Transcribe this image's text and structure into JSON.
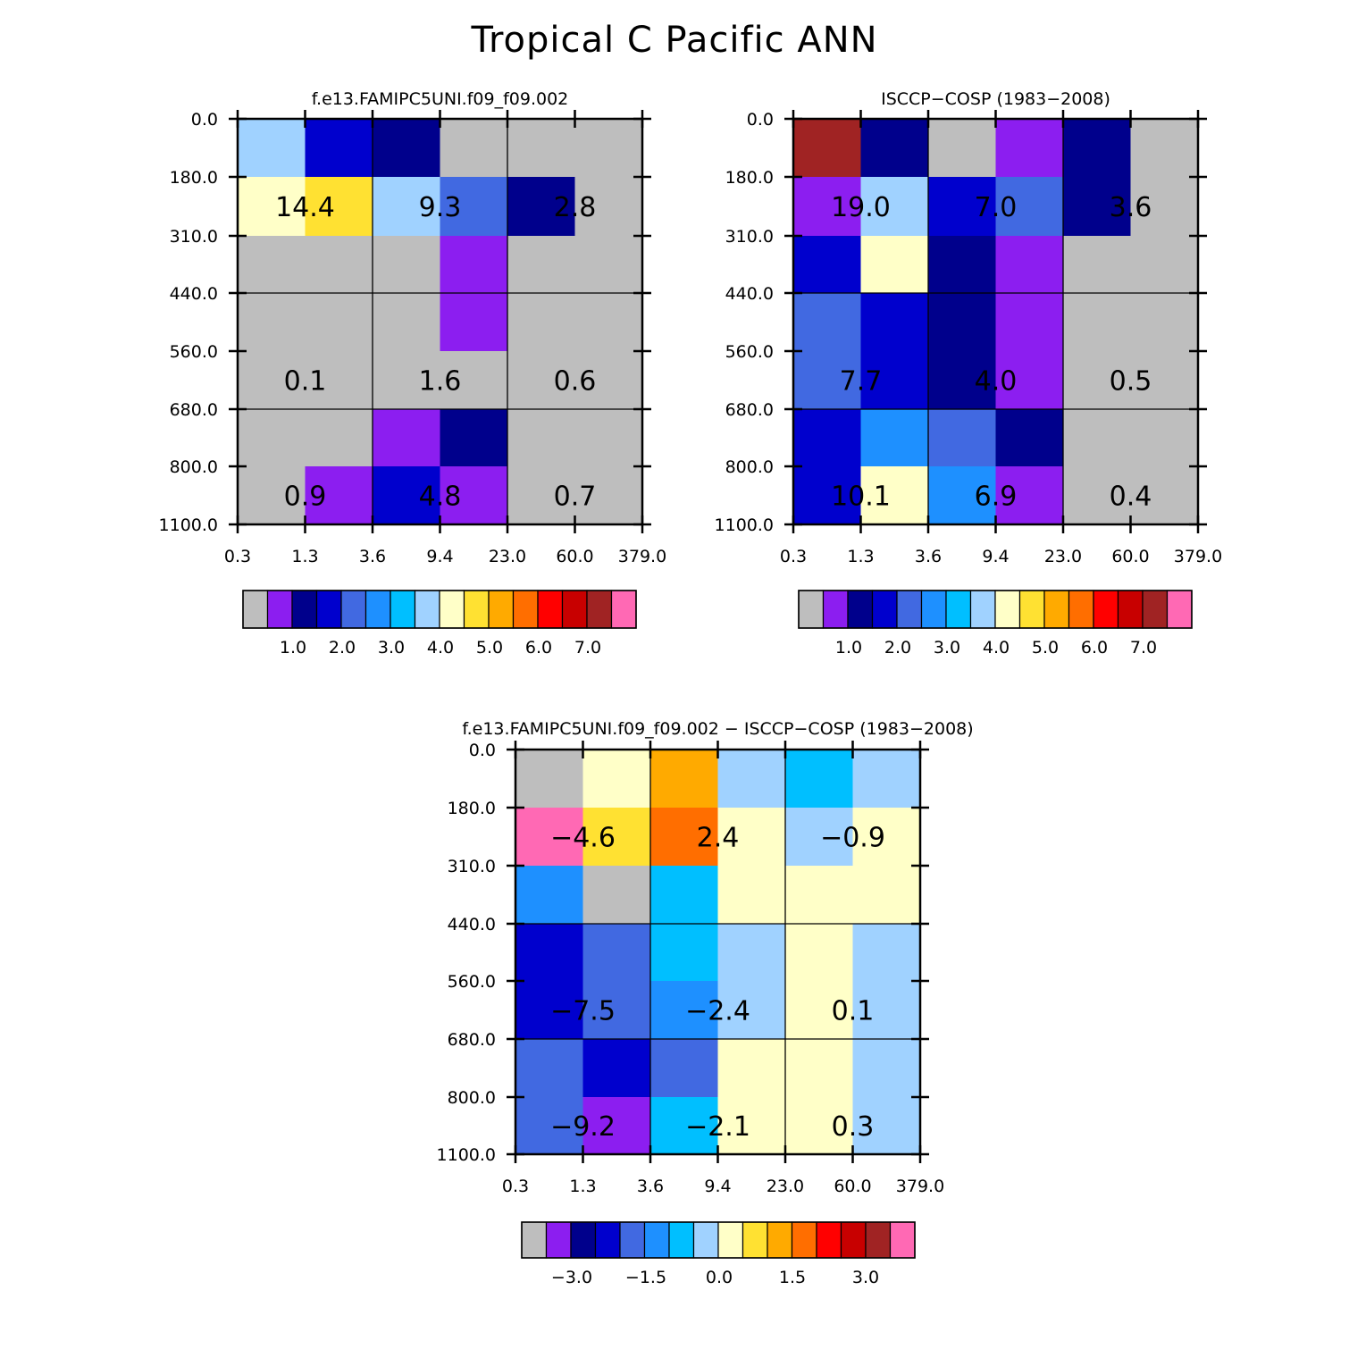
{
  "page_title": "Tropical C Pacific ANN",
  "colors": {
    "missing": "#bebebe",
    "palette": [
      "#bebebe",
      "#8c1ef0",
      "#00008c",
      "#0000cd",
      "#4169e1",
      "#1e90ff",
      "#00bfff",
      "#a0d2ff",
      "#ffffc8",
      "#ffe132",
      "#ffaa00",
      "#ff6e00",
      "#ff0000",
      "#c80000",
      "#a02323",
      "#ff69b4"
    ]
  },
  "chart_data": [
    {
      "type": "heatmap",
      "title": "f.e13.FAMIPC5UNI.f09_f09.002",
      "x_tick_labels": [
        "0.3",
        "1.3",
        "3.6",
        "9.4",
        "23.0",
        "60.0",
        "379.0"
      ],
      "y_tick_labels": [
        "0.0",
        "180.0",
        "310.0",
        "440.0",
        "560.0",
        "680.0",
        "800.0",
        "1100.0"
      ],
      "cell_color_index": [
        [
          7,
          3,
          2,
          0,
          0,
          0
        ],
        [
          8,
          9,
          7,
          4,
          2,
          0
        ],
        [
          0,
          0,
          0,
          1,
          0,
          0
        ],
        [
          0,
          0,
          0,
          1,
          0,
          0
        ],
        [
          0,
          0,
          0,
          0,
          0,
          0
        ],
        [
          0,
          0,
          1,
          2,
          0,
          0
        ],
        [
          0,
          1,
          3,
          1,
          0,
          0
        ]
      ],
      "region_values": [
        {
          "label": "14.4",
          "col": 1,
          "row": 1
        },
        {
          "label": "9.3",
          "col": 3,
          "row": 1
        },
        {
          "label": "2.8",
          "col": 5,
          "row": 1
        },
        {
          "label": "0.1",
          "col": 1,
          "row": 4
        },
        {
          "label": "1.6",
          "col": 3,
          "row": 4
        },
        {
          "label": "0.6",
          "col": 5,
          "row": 4
        },
        {
          "label": "0.9",
          "col": 1,
          "row": 6
        },
        {
          "label": "4.8",
          "col": 3,
          "row": 6
        },
        {
          "label": "0.7",
          "col": 5,
          "row": 6
        }
      ],
      "colorbar": {
        "labels": [
          "1.0",
          "2.0",
          "3.0",
          "4.0",
          "5.0",
          "6.0",
          "7.0"
        ]
      }
    },
    {
      "type": "heatmap",
      "title": "ISCCP-COSP (1983-2008)",
      "x_tick_labels": [
        "0.3",
        "1.3",
        "3.6",
        "9.4",
        "23.0",
        "60.0",
        "379.0"
      ],
      "y_tick_labels": [
        "0.0",
        "180.0",
        "310.0",
        "440.0",
        "560.0",
        "680.0",
        "800.0",
        "1100.0"
      ],
      "cell_color_index": [
        [
          14,
          2,
          0,
          1,
          2,
          0
        ],
        [
          1,
          7,
          3,
          4,
          2,
          0
        ],
        [
          3,
          8,
          2,
          1,
          0,
          0
        ],
        [
          4,
          3,
          2,
          1,
          0,
          0
        ],
        [
          4,
          3,
          2,
          1,
          0,
          0
        ],
        [
          3,
          5,
          4,
          2,
          0,
          0
        ],
        [
          3,
          8,
          5,
          1,
          0,
          0
        ]
      ],
      "region_values": [
        {
          "label": "19.0",
          "col": 1,
          "row": 1
        },
        {
          "label": "7.0",
          "col": 3,
          "row": 1
        },
        {
          "label": "3.6",
          "col": 5,
          "row": 1
        },
        {
          "label": "7.7",
          "col": 1,
          "row": 4
        },
        {
          "label": "4.0",
          "col": 3,
          "row": 4
        },
        {
          "label": "0.5",
          "col": 5,
          "row": 4
        },
        {
          "label": "10.1",
          "col": 1,
          "row": 6
        },
        {
          "label": "6.9",
          "col": 3,
          "row": 6
        },
        {
          "label": "0.4",
          "col": 5,
          "row": 6
        }
      ],
      "colorbar": {
        "labels": [
          "1.0",
          "2.0",
          "3.0",
          "4.0",
          "5.0",
          "6.0",
          "7.0"
        ]
      }
    },
    {
      "type": "heatmap",
      "title": "f.e13.FAMIPC5UNI.f09_f09.002 - ISCCP-COSP (1983-2008)",
      "x_tick_labels": [
        "0.3",
        "1.3",
        "3.6",
        "9.4",
        "23.0",
        "60.0",
        "379.0"
      ],
      "y_tick_labels": [
        "0.0",
        "180.0",
        "310.0",
        "440.0",
        "560.0",
        "680.0",
        "800.0",
        "1100.0"
      ],
      "cell_color_index": [
        [
          0,
          8,
          10,
          7,
          6,
          7
        ],
        [
          15,
          9,
          11,
          8,
          7,
          8
        ],
        [
          5,
          0,
          6,
          8,
          8,
          8
        ],
        [
          3,
          4,
          6,
          7,
          8,
          7
        ],
        [
          3,
          4,
          5,
          7,
          8,
          7
        ],
        [
          4,
          3,
          4,
          8,
          8,
          7
        ],
        [
          4,
          1,
          6,
          8,
          8,
          7
        ]
      ],
      "region_values": [
        {
          "label": "-4.6",
          "col": 1,
          "row": 1
        },
        {
          "label": "2.4",
          "col": 3,
          "row": 1
        },
        {
          "label": "-0.9",
          "col": 5,
          "row": 1
        },
        {
          "label": "-7.5",
          "col": 1,
          "row": 4
        },
        {
          "label": "-2.4",
          "col": 3,
          "row": 4
        },
        {
          "label": "0.1",
          "col": 5,
          "row": 4
        },
        {
          "label": "-9.2",
          "col": 1,
          "row": 6
        },
        {
          "label": "-2.1",
          "col": 3,
          "row": 6
        },
        {
          "label": "0.3",
          "col": 5,
          "row": 6
        }
      ],
      "colorbar": {
        "labels": [
          "-3.0",
          "-1.5",
          "0.0",
          "1.5",
          "3.0"
        ]
      }
    }
  ]
}
